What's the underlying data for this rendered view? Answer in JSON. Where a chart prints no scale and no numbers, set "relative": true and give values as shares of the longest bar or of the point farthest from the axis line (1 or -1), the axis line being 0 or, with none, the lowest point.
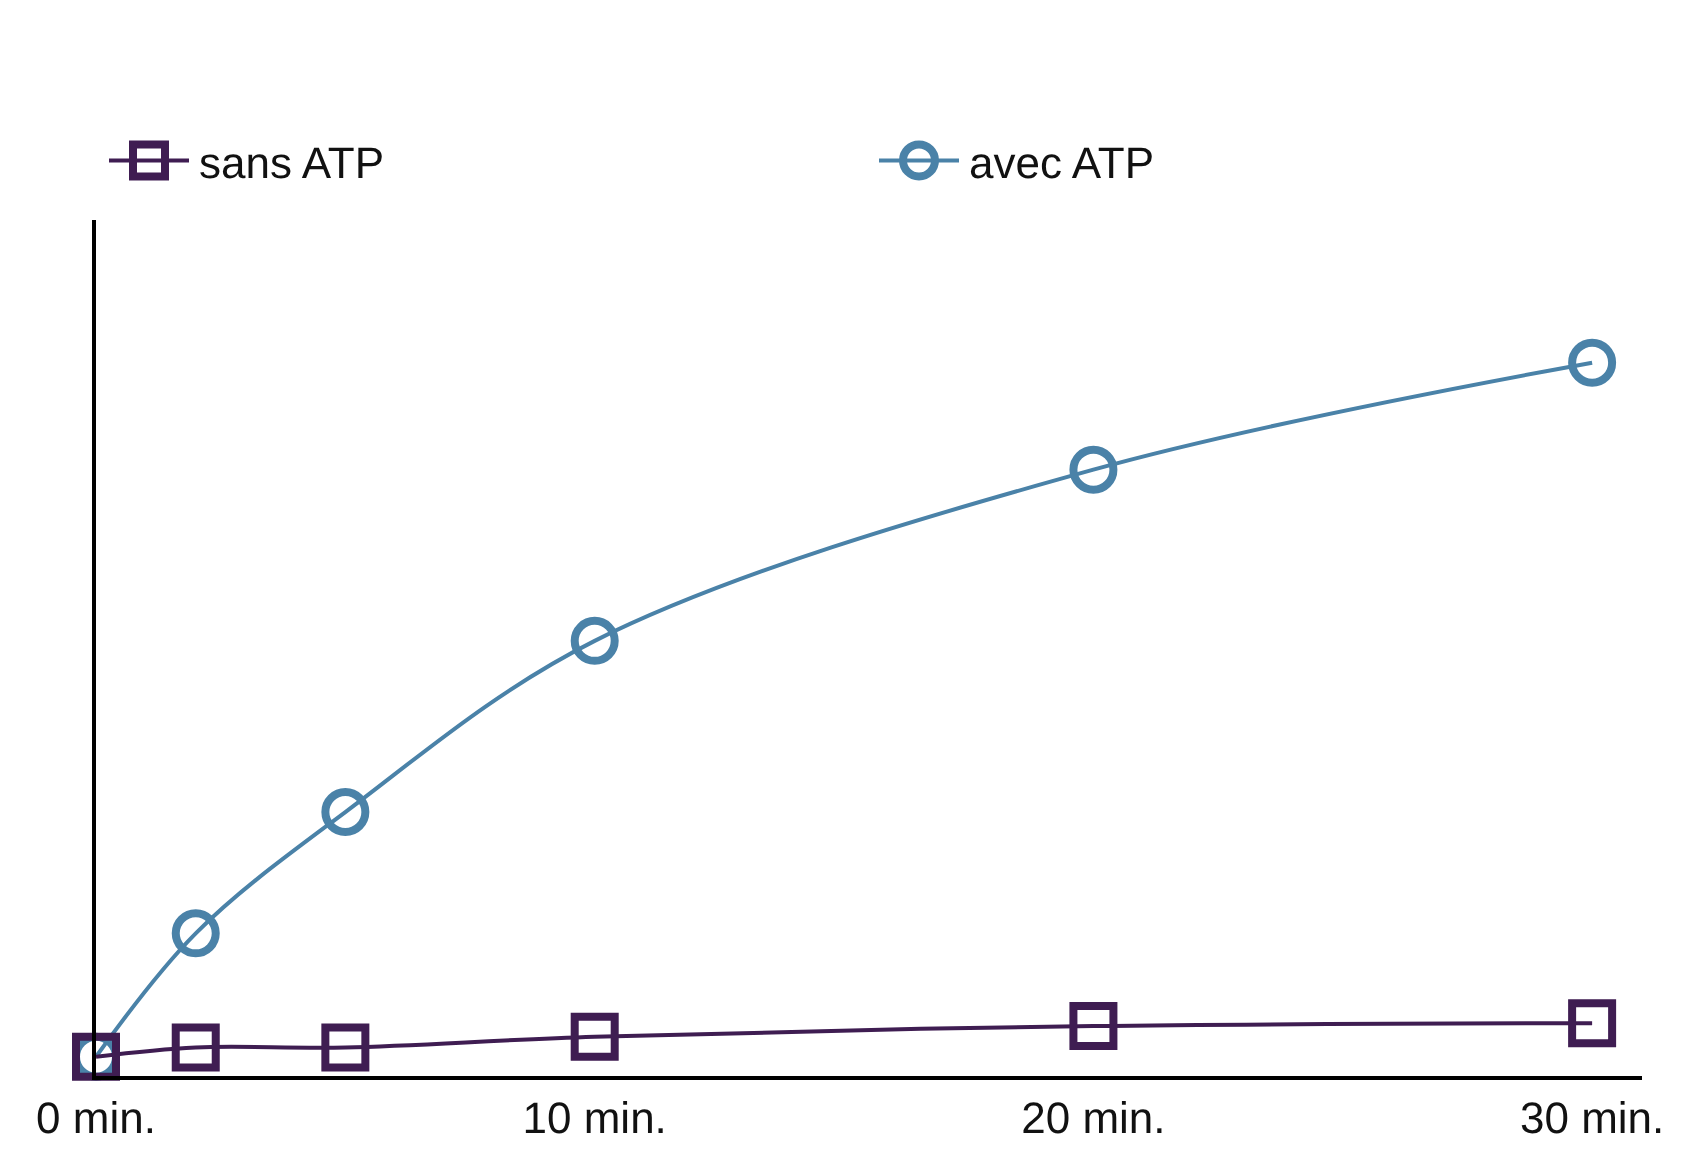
{
  "chart_data": {
    "type": "line",
    "relative": true,
    "x": [
      0,
      2,
      5,
      10,
      20,
      30
    ],
    "xlim": [
      0,
      31
    ],
    "xticks": [
      {
        "value": 0,
        "label": "0 min."
      },
      {
        "value": 10,
        "label": "10 min."
      },
      {
        "value": 20,
        "label": "20 min."
      },
      {
        "value": 30,
        "label": "30 min."
      }
    ],
    "series": [
      {
        "name": "sans ATP",
        "color": "#3f1d52",
        "marker": "square",
        "values": [
          0.027,
          0.04,
          0.04,
          0.055,
          0.07,
          0.074
        ]
      },
      {
        "name": "avec ATP",
        "color": "#4a82a8",
        "marker": "circle",
        "values": [
          0.027,
          0.2,
          0.37,
          0.61,
          0.85,
          1
        ]
      }
    ],
    "legend": "top",
    "grid": false,
    "line_style": "solid"
  }
}
